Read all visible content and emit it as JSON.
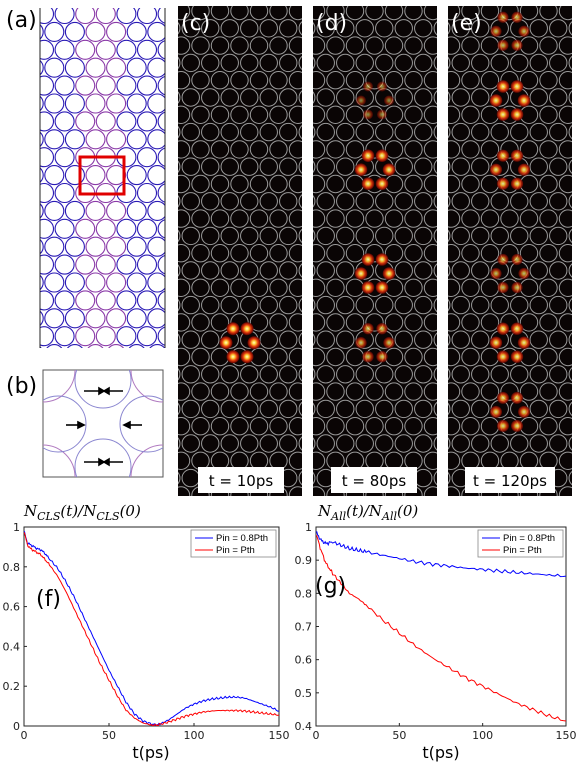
{
  "panel_labels": {
    "a": "(a)",
    "b": "(b)",
    "c": "(c)",
    "d": "(d)",
    "e": "(e)",
    "f": "(f)",
    "g": "(g)"
  },
  "time_labels": {
    "c": "t = 10ps",
    "d": "t = 80ps",
    "e": "t = 120ps"
  },
  "colors": {
    "lattice_blue": "#2a1ab5",
    "lattice_purple": "#8a3aa8",
    "highlight_red": "#e00000",
    "blue_series": "#0000ff",
    "red_series": "#ff0000",
    "dark_bg": "#0a0505",
    "ring_grey": "#9a9a9a"
  },
  "spots": {
    "c": {
      "rows": [
        19
      ],
      "amplitude": [
        1.0
      ]
    },
    "d": {
      "rows": [
        5,
        9,
        15,
        19
      ],
      "amplitude": [
        0.25,
        0.9,
        0.9,
        0.6
      ]
    },
    "e": {
      "rows": [
        1,
        5,
        9,
        15,
        19,
        23
      ],
      "amplitude": [
        0.55,
        0.9,
        0.8,
        0.55,
        0.85,
        0.75
      ]
    }
  },
  "chart_data": [
    {
      "id": "f",
      "type": "line",
      "title": "N_CLS(t)/N_CLS(0)",
      "title_main": "N",
      "title_sub": "CLS",
      "xlabel": "t(ps)",
      "ylabel": "",
      "xlim": [
        0,
        150
      ],
      "ylim": [
        0,
        1
      ],
      "xticks": [
        0,
        50,
        100,
        150
      ],
      "yticks": [
        0,
        0.2,
        0.4,
        0.6,
        0.8,
        1
      ],
      "legend_position": "top-right",
      "series": [
        {
          "name": "Pin = 0.8Pth",
          "color": "#0000ff",
          "x": [
            0,
            2,
            4,
            6,
            8,
            10,
            12,
            15,
            20,
            25,
            30,
            35,
            40,
            45,
            50,
            55,
            60,
            65,
            70,
            75,
            78,
            80,
            85,
            90,
            95,
            100,
            105,
            110,
            115,
            120,
            125,
            130,
            135,
            140,
            145,
            150
          ],
          "y": [
            0.98,
            0.92,
            0.91,
            0.9,
            0.89,
            0.885,
            0.87,
            0.84,
            0.79,
            0.72,
            0.64,
            0.55,
            0.46,
            0.37,
            0.28,
            0.2,
            0.12,
            0.06,
            0.025,
            0.01,
            0.005,
            0.01,
            0.03,
            0.06,
            0.09,
            0.11,
            0.125,
            0.135,
            0.14,
            0.145,
            0.145,
            0.14,
            0.125,
            0.11,
            0.095,
            0.075
          ]
        },
        {
          "name": "Pin = Pth",
          "color": "#ff0000",
          "x": [
            0,
            2,
            4,
            6,
            8,
            10,
            12,
            15,
            20,
            25,
            30,
            35,
            40,
            45,
            50,
            55,
            60,
            65,
            70,
            75,
            78,
            80,
            85,
            90,
            95,
            100,
            105,
            110,
            115,
            120,
            125,
            130,
            135,
            140,
            145,
            150
          ],
          "y": [
            0.98,
            0.91,
            0.89,
            0.88,
            0.87,
            0.86,
            0.84,
            0.81,
            0.75,
            0.67,
            0.58,
            0.49,
            0.4,
            0.31,
            0.23,
            0.15,
            0.08,
            0.04,
            0.015,
            0.005,
            0.004,
            0.008,
            0.02,
            0.035,
            0.05,
            0.06,
            0.07,
            0.075,
            0.078,
            0.078,
            0.078,
            0.075,
            0.07,
            0.065,
            0.06,
            0.055
          ]
        }
      ]
    },
    {
      "id": "g",
      "type": "line",
      "title": "N_All(t)/N_All(0)",
      "title_main": "N",
      "title_sub": "All",
      "xlabel": "t(ps)",
      "ylabel": "",
      "xlim": [
        0,
        150
      ],
      "ylim": [
        0.4,
        1
      ],
      "xticks": [
        0,
        50,
        100,
        150
      ],
      "yticks": [
        0.4,
        0.5,
        0.6,
        0.7,
        0.8,
        0.9,
        1
      ],
      "legend_position": "top-right",
      "series": [
        {
          "name": "Pin = 0.8Pth",
          "color": "#0000ff",
          "x": [
            0,
            3,
            6,
            10,
            15,
            20,
            25,
            30,
            40,
            50,
            60,
            70,
            80,
            90,
            100,
            110,
            120,
            130,
            140,
            150
          ],
          "y": [
            0.985,
            0.96,
            0.95,
            0.955,
            0.945,
            0.935,
            0.93,
            0.925,
            0.915,
            0.905,
            0.895,
            0.888,
            0.882,
            0.876,
            0.872,
            0.867,
            0.863,
            0.859,
            0.855,
            0.852
          ]
        },
        {
          "name": "Pin = Pth",
          "color": "#ff0000",
          "x": [
            0,
            3,
            6,
            10,
            15,
            20,
            25,
            30,
            40,
            50,
            60,
            70,
            80,
            90,
            100,
            110,
            120,
            130,
            140,
            150
          ],
          "y": [
            0.98,
            0.93,
            0.89,
            0.86,
            0.83,
            0.8,
            0.785,
            0.765,
            0.72,
            0.68,
            0.64,
            0.605,
            0.575,
            0.545,
            0.52,
            0.495,
            0.47,
            0.45,
            0.43,
            0.415
          ]
        }
      ]
    }
  ]
}
